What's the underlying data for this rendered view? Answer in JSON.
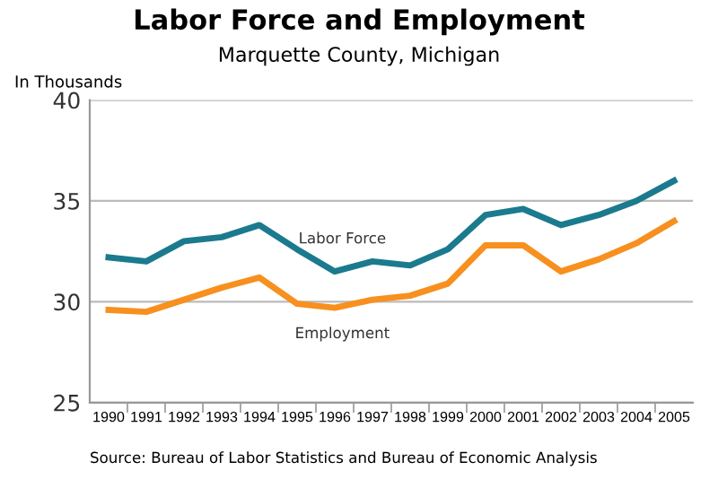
{
  "chart_data": {
    "type": "line",
    "title": "Labor Force and Employment",
    "subtitle": "Marquette County, Michigan",
    "ylabel": "In Thousands",
    "categories": [
      "1990",
      "1991",
      "1992",
      "1993",
      "1994",
      "1995",
      "1996",
      "1997",
      "1998",
      "1999",
      "2000",
      "2001",
      "2002",
      "2003",
      "2004",
      "2005"
    ],
    "series": [
      {
        "name": "Labor Force",
        "color": "#1b7a8e",
        "values": [
          32.2,
          32.0,
          33.0,
          33.2,
          33.8,
          32.6,
          31.5,
          32.0,
          31.8,
          32.6,
          34.3,
          34.6,
          33.8,
          34.3,
          35.0,
          36.0
        ]
      },
      {
        "name": "Employment",
        "color": "#f7901e",
        "values": [
          29.6,
          29.5,
          30.1,
          30.7,
          31.2,
          29.9,
          29.7,
          30.1,
          30.3,
          30.9,
          32.8,
          32.8,
          31.5,
          32.1,
          32.9,
          34.0
        ]
      }
    ],
    "ylim": [
      25,
      40
    ],
    "yticks": [
      25,
      30,
      35,
      40
    ],
    "grid": "y",
    "legend": false,
    "marker": "none",
    "line_style": "solid",
    "annotations": [
      "Source: Bureau of Labor Statistics and Bureau of Economic Analysis"
    ]
  }
}
